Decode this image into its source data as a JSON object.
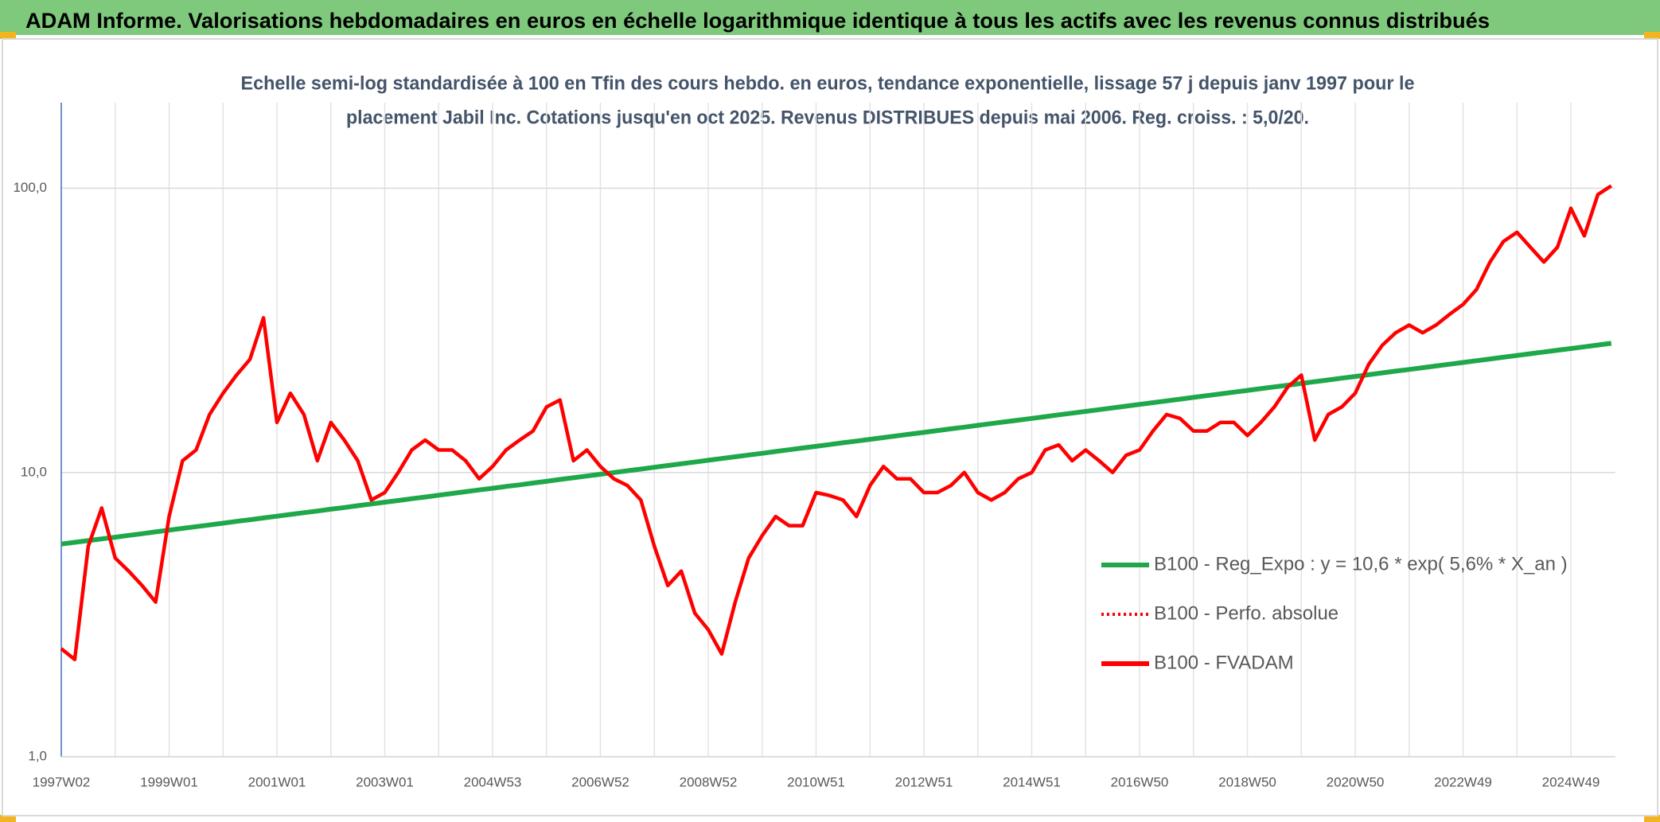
{
  "chart_data": {
    "type": "line",
    "header": "ADAM Informe. Valorisations hebdomadaires en euros en échelle logarithmique identique à tous les actifs avec les revenus connus distribués",
    "title": [
      "Echelle semi-log standardisée à 100 en Tfin des cours hebdo. en euros, tendance exponentielle, lissage 57 j depuis janv 1997 pour le",
      "placement Jabil Inc. Cotations jusqu'en oct 2025. Revenus DISTRIBUES depuis mai 2006. Reg. croiss. : 5,0/20."
    ],
    "log_scale": true,
    "grid": true,
    "legend": "right",
    "ylim": [
      1,
      200
    ],
    "yticks": [
      {
        "value": 1,
        "label": "1,0"
      },
      {
        "value": 10,
        "label": "10,0"
      },
      {
        "value": 100,
        "label": "100,0"
      }
    ],
    "categories": [
      "1997W02",
      null,
      null,
      null,
      null,
      null,
      null,
      null,
      "1999W01",
      null,
      null,
      null,
      null,
      null,
      null,
      null,
      "2001W01",
      null,
      null,
      null,
      null,
      null,
      null,
      null,
      "2003W01",
      null,
      null,
      null,
      null,
      null,
      null,
      null,
      "2004W53",
      null,
      null,
      null,
      null,
      null,
      null,
      null,
      "2006W52",
      null,
      null,
      null,
      null,
      null,
      null,
      null,
      "2008W52",
      null,
      null,
      null,
      null,
      null,
      null,
      null,
      "2010W51",
      null,
      null,
      null,
      null,
      null,
      null,
      null,
      "2012W51",
      null,
      null,
      null,
      null,
      null,
      null,
      null,
      "2014W51",
      null,
      null,
      null,
      null,
      null,
      null,
      null,
      "2016W50",
      null,
      null,
      null,
      null,
      null,
      null,
      null,
      "2018W50",
      null,
      null,
      null,
      null,
      null,
      null,
      null,
      "2020W50",
      null,
      null,
      null,
      null,
      null,
      null,
      null,
      "2022W49",
      null,
      null,
      null,
      null,
      null,
      null,
      null,
      "2024W49",
      null,
      null,
      null
    ],
    "series": [
      {
        "name": "B100 - Reg_Expo : y = 10,6 * exp( 5,6% *  X_an )",
        "color": "#1fa84a",
        "style": "solid",
        "values": [
          5.6,
          5.68,
          5.76,
          5.84,
          5.92,
          6.01,
          6.09,
          6.18,
          6.27,
          6.36,
          6.45,
          6.54,
          6.63,
          6.73,
          6.82,
          6.92,
          7.02,
          7.12,
          7.22,
          7.32,
          7.43,
          7.53,
          7.64,
          7.75,
          7.86,
          7.97,
          8.09,
          8.2,
          8.32,
          8.44,
          8.56,
          8.68,
          8.8,
          8.93,
          9.05,
          9.18,
          9.31,
          9.45,
          9.58,
          9.72,
          9.86,
          10.0,
          10.14,
          10.28,
          10.43,
          10.58,
          10.73,
          10.88,
          11.04,
          11.2,
          11.36,
          11.52,
          11.68,
          11.85,
          12.02,
          12.19,
          12.36,
          12.54,
          12.72,
          12.9,
          13.08,
          13.27,
          13.46,
          13.65,
          13.84,
          14.04,
          14.24,
          14.44,
          14.65,
          14.86,
          15.07,
          15.28,
          15.5,
          15.72,
          15.95,
          16.17,
          16.4,
          16.64,
          16.87,
          17.11,
          17.36,
          17.61,
          17.86,
          18.11,
          18.37,
          18.63,
          18.9,
          19.17,
          19.44,
          19.72,
          20.0,
          20.28,
          20.57,
          20.87,
          21.16,
          21.47,
          21.77,
          22.08,
          22.4,
          22.72,
          23.04,
          23.37,
          23.7,
          24.04,
          24.38,
          24.73,
          25.08,
          25.44,
          25.8,
          26.17,
          26.54,
          26.92,
          27.3,
          27.69,
          28.08,
          28.48
        ]
      },
      {
        "name": "B100 - Perfo. absolue",
        "color": "#ff0000",
        "style": "dotted",
        "values": [
          2.4,
          2.2,
          5.5,
          7.5,
          5.0,
          4.5,
          4.0,
          3.5,
          7.0,
          11,
          12,
          16,
          19,
          22,
          25,
          35,
          15,
          19,
          16,
          11,
          15,
          13,
          11,
          8,
          8.5,
          10,
          12,
          13,
          12,
          12,
          11,
          9.5,
          10.5,
          12,
          13,
          14,
          17,
          18,
          11,
          12,
          10.5,
          9.5,
          9,
          8,
          5.5,
          4,
          4.5,
          3.2,
          2.8,
          2.3,
          3.5,
          5,
          6,
          7,
          6.5,
          6.5,
          8.5,
          8.3,
          8,
          7,
          9,
          10.5,
          9.5,
          9.5,
          8.5,
          8.5,
          9,
          10,
          8.5,
          8,
          8.5,
          9.5,
          10,
          12,
          12.5,
          11,
          12,
          11,
          10,
          11.5,
          12,
          14,
          16,
          15.5,
          14,
          14,
          15,
          15,
          13.5,
          15,
          17,
          20,
          22,
          13,
          16,
          17,
          19,
          24,
          28,
          31,
          33,
          31,
          33,
          36,
          39,
          44,
          55,
          65,
          70,
          62,
          55,
          62,
          85,
          68,
          95,
          102
        ]
      },
      {
        "name": "B100 - FVADAM",
        "color": "#ff0000",
        "style": "solid",
        "values": [
          2.4,
          2.2,
          5.5,
          7.5,
          5.0,
          4.5,
          4.0,
          3.5,
          7.0,
          11,
          12,
          16,
          19,
          22,
          25,
          35,
          15,
          19,
          16,
          11,
          15,
          13,
          11,
          8,
          8.5,
          10,
          12,
          13,
          12,
          12,
          11,
          9.5,
          10.5,
          12,
          13,
          14,
          17,
          18,
          11,
          12,
          10.5,
          9.5,
          9,
          8,
          5.5,
          4,
          4.5,
          3.2,
          2.8,
          2.3,
          3.5,
          5,
          6,
          7,
          6.5,
          6.5,
          8.5,
          8.3,
          8,
          7,
          9,
          10.5,
          9.5,
          9.5,
          8.5,
          8.5,
          9,
          10,
          8.5,
          8,
          8.5,
          9.5,
          10,
          12,
          12.5,
          11,
          12,
          11,
          10,
          11.5,
          12,
          14,
          16,
          15.5,
          14,
          14,
          15,
          15,
          13.5,
          15,
          17,
          20,
          22,
          13,
          16,
          17,
          19,
          24,
          28,
          31,
          33,
          31,
          33,
          36,
          39,
          44,
          55,
          65,
          70,
          62,
          55,
          62,
          85,
          68,
          95,
          102
        ]
      }
    ]
  }
}
